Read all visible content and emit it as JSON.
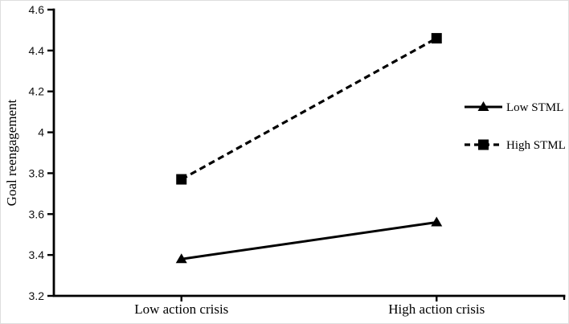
{
  "figure": {
    "background": "#ffffff",
    "ink_color": "#000000"
  },
  "chart_data": {
    "type": "line",
    "title": "",
    "xlabel": "",
    "ylabel": "Goal reengagement",
    "categories": [
      "Low action crisis",
      "High action crisis"
    ],
    "series": [
      {
        "name": "Low STML",
        "values": [
          3.38,
          3.56
        ],
        "line": "solid",
        "marker": "triangle",
        "color": "#000000"
      },
      {
        "name": "High STML",
        "values": [
          3.77,
          4.46
        ],
        "line": "dashed",
        "marker": "square",
        "color": "#000000"
      }
    ],
    "ylim": [
      3.2,
      4.6
    ],
    "ytick_step": 0.2,
    "ytick_labels": [
      "3.2",
      "3.4",
      "3.6",
      "3.8",
      "4",
      "4.2",
      "4.4",
      "4.6"
    ],
    "grid": false,
    "legend_position": "right",
    "legend_entries": [
      "Low STML",
      "High STML"
    ]
  }
}
